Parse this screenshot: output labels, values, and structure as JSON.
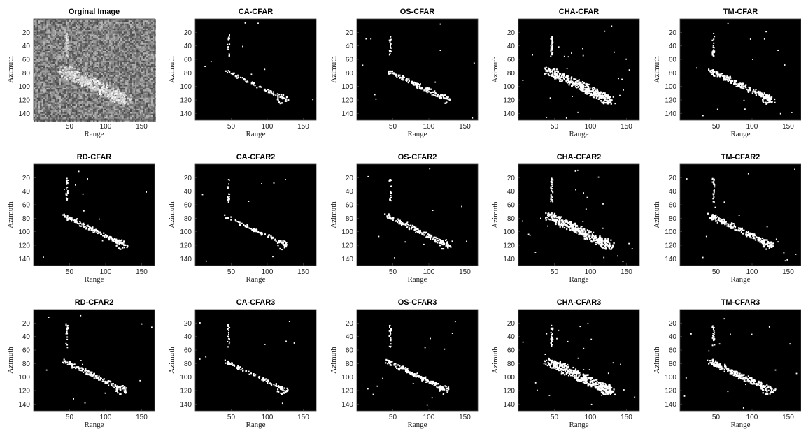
{
  "chart_data": {
    "type": "image-grid",
    "layout": {
      "rows": 3,
      "cols": 5
    },
    "xlabel": "Range",
    "ylabel": "Azimuth",
    "xlim": [
      0,
      168
    ],
    "ylim": [
      150,
      0
    ],
    "xticks": [
      50,
      100,
      150
    ],
    "yticks": [
      20,
      40,
      60,
      80,
      100,
      120,
      140
    ],
    "panels": [
      {
        "title": "Orginal Image",
        "kind": "sar",
        "density": 0
      },
      {
        "title": "CA-CFAR",
        "kind": "detection",
        "density": 0.08
      },
      {
        "title": "OS-CFAR",
        "kind": "detection",
        "density": 0.18
      },
      {
        "title": "CHA-CFAR",
        "kind": "detection",
        "density": 0.62
      },
      {
        "title": "TM-CFAR",
        "kind": "detection",
        "density": 0.3
      },
      {
        "title": "RD-CFAR",
        "kind": "detection",
        "density": 0.2
      },
      {
        "title": "CA-CFAR2",
        "kind": "detection",
        "density": 0.09
      },
      {
        "title": "OS-CFAR2",
        "kind": "detection",
        "density": 0.2
      },
      {
        "title": "CHA-CFAR2",
        "kind": "detection",
        "density": 0.6
      },
      {
        "title": "TM-CFAR2",
        "kind": "detection",
        "density": 0.32
      },
      {
        "title": "RD-CFAR2",
        "kind": "detection",
        "density": 0.22
      },
      {
        "title": "CA-CFAR3",
        "kind": "detection",
        "density": 0.1
      },
      {
        "title": "OS-CFAR3",
        "kind": "detection",
        "density": 0.21
      },
      {
        "title": "CHA-CFAR3",
        "kind": "detection",
        "density": 0.66
      },
      {
        "title": "TM-CFAR3",
        "kind": "detection",
        "density": 0.34
      }
    ],
    "target": {
      "mast": {
        "range": [
          44,
          47
        ],
        "azimuth": [
          20,
          55
        ]
      },
      "hull_start": {
        "range": 40,
        "azimuth": 75
      },
      "hull_end": {
        "range": 128,
        "azimuth": 120
      }
    },
    "colors": {
      "background": "#000000",
      "detection": "#ffffff",
      "axes": "#444444"
    }
  }
}
